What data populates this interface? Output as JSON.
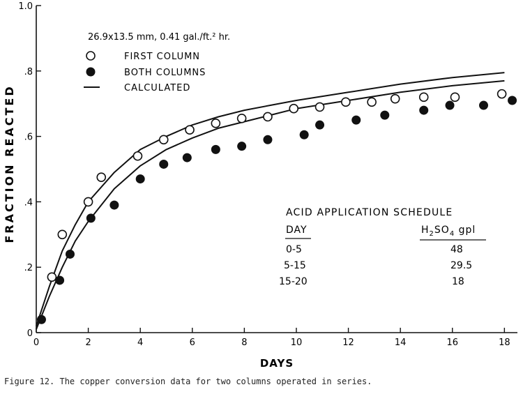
{
  "chart_data": {
    "type": "scatter",
    "xlabel": "DAYS",
    "ylabel": "FRACTION REACTED",
    "xlim": [
      0,
      18.5
    ],
    "ylim": [
      0,
      1.0
    ],
    "x_ticks": [
      0,
      2,
      4,
      6,
      8,
      10,
      12,
      14,
      16,
      18
    ],
    "y_ticks": [
      0,
      0.2,
      0.4,
      0.6,
      0.8,
      1.0
    ],
    "y_tick_labels": [
      "0",
      ".2",
      ".4",
      ".6",
      ".8",
      "1.0"
    ],
    "grid": false,
    "conditions": "26.9x13.5 mm, 0.41 gal./ft.² hr.",
    "legend": [
      {
        "marker": "open-circle",
        "label": "FIRST COLUMN"
      },
      {
        "marker": "filled-circle",
        "label": "BOTH COLUMNS"
      },
      {
        "marker": "line",
        "label": "CALCULATED"
      }
    ],
    "series": [
      {
        "name": "FIRST COLUMN",
        "marker": "open-circle",
        "x": [
          0.6,
          1.0,
          2.0,
          2.5,
          3.9,
          4.9,
          5.9,
          6.9,
          7.9,
          8.9,
          9.9,
          10.9,
          11.9,
          12.9,
          13.8,
          14.9,
          16.1,
          17.9
        ],
        "y": [
          0.17,
          0.3,
          0.4,
          0.475,
          0.54,
          0.59,
          0.62,
          0.64,
          0.655,
          0.66,
          0.685,
          0.69,
          0.705,
          0.705,
          0.715,
          0.72,
          0.72,
          0.73
        ]
      },
      {
        "name": "BOTH COLUMNS",
        "marker": "filled-circle",
        "x": [
          0.2,
          0.9,
          1.3,
          2.1,
          3.0,
          4.0,
          4.9,
          5.8,
          6.9,
          7.9,
          8.9,
          10.3,
          10.9,
          12.3,
          13.4,
          14.9,
          15.9,
          17.2,
          18.3
        ],
        "y": [
          0.04,
          0.16,
          0.24,
          0.35,
          0.39,
          0.47,
          0.515,
          0.535,
          0.56,
          0.57,
          0.59,
          0.605,
          0.635,
          0.65,
          0.665,
          0.68,
          0.695,
          0.695,
          0.71
        ]
      },
      {
        "name": "CALCULATED",
        "marker": "line",
        "x": [
          0,
          0.5,
          1,
          1.5,
          2,
          3,
          4,
          5,
          6,
          7,
          8,
          9,
          10,
          12,
          14,
          16,
          18
        ],
        "y": [
          0.02,
          0.14,
          0.25,
          0.33,
          0.4,
          0.49,
          0.56,
          0.6,
          0.635,
          0.66,
          0.68,
          0.695,
          0.71,
          0.735,
          0.76,
          0.78,
          0.795
        ]
      },
      {
        "name": "CALCULATED",
        "marker": "line",
        "x": [
          0,
          0.5,
          1,
          1.5,
          2,
          3,
          4,
          5,
          6,
          7,
          8,
          9,
          10,
          12,
          14,
          16,
          18
        ],
        "y": [
          0.01,
          0.11,
          0.2,
          0.28,
          0.34,
          0.44,
          0.51,
          0.56,
          0.595,
          0.625,
          0.645,
          0.665,
          0.685,
          0.71,
          0.735,
          0.755,
          0.77
        ]
      }
    ],
    "schedule": {
      "title": "ACID APPLICATION SCHEDULE",
      "col_day": "DAY",
      "col_acid": "H2SO4 gpl",
      "rows": [
        {
          "day": "0-5",
          "acid": "48"
        },
        {
          "day": "5-15",
          "acid": "29.5"
        },
        {
          "day": "15-20",
          "acid": "18"
        }
      ]
    }
  },
  "caption": "Figure 12. The copper conversion data for two columns operated in series."
}
